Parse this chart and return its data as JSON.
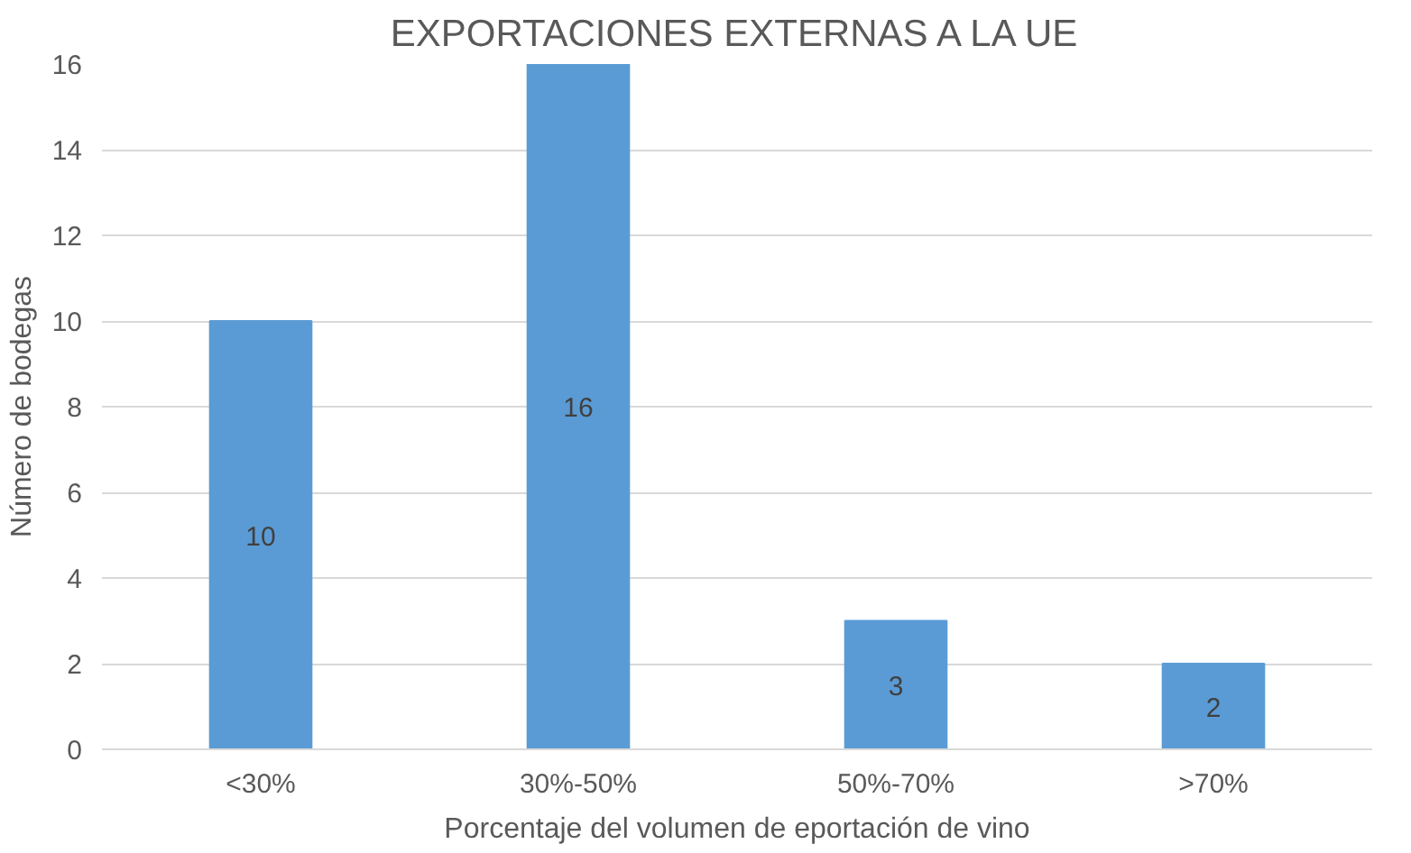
{
  "chart_data": {
    "type": "bar",
    "title": "EXPORTACIONES EXTERNAS A LA UE",
    "xlabel": "Porcentaje del volumen de eportación de vino",
    "ylabel": "Número de bodegas",
    "categories": [
      "<30%",
      "30%-50%",
      "50%-70%",
      ">70%"
    ],
    "values": [
      10,
      16,
      3,
      2
    ],
    "color": "#5b9bd5",
    "ylim": [
      0,
      16
    ],
    "yticks": [
      0,
      2,
      4,
      6,
      8,
      10,
      12,
      14,
      16
    ],
    "grid": "y",
    "data_labels": true
  }
}
